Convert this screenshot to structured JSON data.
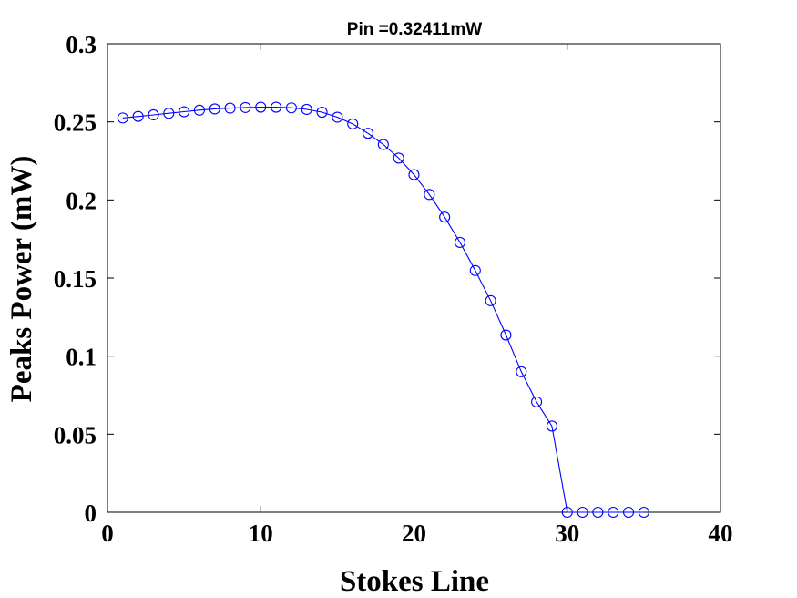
{
  "chart_data": {
    "type": "line",
    "title": "Pin =0.32411mW",
    "xlabel": "Stokes Line",
    "ylabel": "Peaks Power (mW)",
    "xlim": [
      0,
      40
    ],
    "ylim": [
      0,
      0.3
    ],
    "xticks": [
      0,
      10,
      20,
      30,
      40
    ],
    "yticks": [
      0,
      0.05,
      0.1,
      0.15,
      0.2,
      0.25,
      0.3
    ],
    "xtick_labels": [
      "0",
      "10",
      "20",
      "30",
      "40"
    ],
    "ytick_labels": [
      "0",
      "0.05",
      "0.1",
      "0.15",
      "0.2",
      "0.25",
      "0.3"
    ],
    "grid": false,
    "series": [
      {
        "color": "#0000ff",
        "marker": "circle",
        "x": [
          1,
          2,
          3,
          4,
          5,
          6,
          7,
          8,
          9,
          10,
          11,
          12,
          13,
          14,
          15,
          16,
          17,
          18,
          19,
          20,
          21,
          22,
          23,
          24,
          25,
          26,
          27,
          28,
          29,
          30,
          31,
          32,
          33,
          34,
          35
        ],
        "y": [
          0.2525,
          0.2535,
          0.2545,
          0.2555,
          0.2565,
          0.2575,
          0.2583,
          0.2588,
          0.2592,
          0.2594,
          0.2594,
          0.259,
          0.258,
          0.2562,
          0.253,
          0.2487,
          0.2427,
          0.2355,
          0.2268,
          0.2162,
          0.2035,
          0.189,
          0.1728,
          0.1548,
          0.1355,
          0.1135,
          0.09,
          0.0707,
          0.0552,
          0.0,
          0.0,
          0.0,
          0.0,
          0.0,
          0.0
        ]
      }
    ]
  }
}
